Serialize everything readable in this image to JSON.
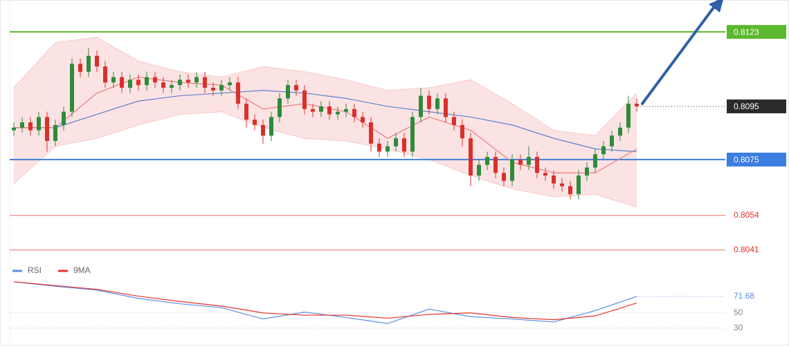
{
  "chart_data": [
    {
      "type": "candlestick",
      "ylim": [
        0.8036,
        0.8135
      ],
      "up_color": "#2e8b3a",
      "down_color": "#d9302c",
      "open": [
        0.8086,
        0.8087,
        0.8089,
        0.8086,
        0.8091,
        0.8082,
        0.8088,
        0.8093,
        0.8111,
        0.8108,
        0.8114,
        0.811,
        0.8104,
        0.8106,
        0.8102,
        0.8105,
        0.8103,
        0.8106,
        0.8104,
        0.8102,
        0.8103,
        0.8105,
        0.8104,
        0.8106,
        0.8102,
        0.8101,
        0.8103,
        0.8104,
        0.8096,
        0.809,
        0.8088,
        0.8084,
        0.8091,
        0.8098,
        0.8103,
        0.8101,
        0.8094,
        0.8093,
        0.8095,
        0.8092,
        0.8093,
        0.8094,
        0.8091,
        0.8089,
        0.8081,
        0.8078,
        0.808,
        0.8083,
        0.8078,
        0.8091,
        0.8099,
        0.8094,
        0.8098,
        0.8091,
        0.8088,
        0.8083,
        0.8069,
        0.8073,
        0.8076,
        0.807,
        0.8067,
        0.8075,
        0.8073,
        0.8076,
        0.807,
        0.8069,
        0.8066,
        0.8065,
        0.8062,
        0.8069,
        0.8072,
        0.8077,
        0.808,
        0.8084,
        0.8087,
        0.8096
      ],
      "high": [
        0.8089,
        0.8091,
        0.8091,
        0.8093,
        0.8093,
        0.809,
        0.8095,
        0.8113,
        0.8113,
        0.8117,
        0.8116,
        0.8112,
        0.8108,
        0.8108,
        0.8107,
        0.8107,
        0.8108,
        0.8108,
        0.8106,
        0.8105,
        0.8107,
        0.8107,
        0.8108,
        0.8108,
        0.8104,
        0.8105,
        0.8106,
        0.8106,
        0.8098,
        0.8092,
        0.809,
        0.8093,
        0.81,
        0.8105,
        0.8105,
        0.8103,
        0.8096,
        0.8097,
        0.8097,
        0.8095,
        0.8096,
        0.8096,
        0.8093,
        0.8091,
        0.8083,
        0.8082,
        0.8085,
        0.8085,
        0.8093,
        0.8102,
        0.8101,
        0.81,
        0.81,
        0.8093,
        0.809,
        0.8085,
        0.8075,
        0.8078,
        0.8078,
        0.8072,
        0.8077,
        0.8077,
        0.808,
        0.8078,
        0.8072,
        0.8071,
        0.8068,
        0.8067,
        0.8071,
        0.8074,
        0.8079,
        0.8082,
        0.8086,
        0.8089,
        0.8099,
        0.8098
      ],
      "low": [
        0.8084,
        0.8085,
        0.8084,
        0.8084,
        0.8078,
        0.808,
        0.8086,
        0.8091,
        0.8106,
        0.8106,
        0.8108,
        0.8102,
        0.8102,
        0.81,
        0.81,
        0.8101,
        0.8101,
        0.8102,
        0.81,
        0.81,
        0.8101,
        0.8102,
        0.8102,
        0.81,
        0.8099,
        0.8099,
        0.8101,
        0.8094,
        0.8087,
        0.8086,
        0.8081,
        0.8082,
        0.8089,
        0.8096,
        0.8099,
        0.8092,
        0.8091,
        0.8091,
        0.809,
        0.809,
        0.8091,
        0.8089,
        0.8087,
        0.8078,
        0.8076,
        0.8076,
        0.8078,
        0.8076,
        0.8076,
        0.8089,
        0.8092,
        0.8092,
        0.8089,
        0.8086,
        0.808,
        0.8065,
        0.8067,
        0.8071,
        0.8068,
        0.8065,
        0.8065,
        0.8071,
        0.8071,
        0.8068,
        0.8067,
        0.8064,
        0.8063,
        0.806,
        0.806,
        0.8067,
        0.807,
        0.8075,
        0.8078,
        0.8082,
        0.8085,
        0.8093
      ],
      "close": [
        0.8087,
        0.8089,
        0.8086,
        0.8091,
        0.8082,
        0.8088,
        0.8093,
        0.8111,
        0.8108,
        0.8114,
        0.811,
        0.8104,
        0.8106,
        0.8102,
        0.8105,
        0.8103,
        0.8106,
        0.8104,
        0.8102,
        0.8103,
        0.8105,
        0.8104,
        0.8106,
        0.8102,
        0.8101,
        0.8103,
        0.8104,
        0.8096,
        0.809,
        0.8088,
        0.8084,
        0.8091,
        0.8098,
        0.8103,
        0.8101,
        0.8094,
        0.8093,
        0.8095,
        0.8092,
        0.8093,
        0.8094,
        0.8091,
        0.8089,
        0.8081,
        0.8078,
        0.808,
        0.8083,
        0.8078,
        0.8091,
        0.8099,
        0.8094,
        0.8098,
        0.8091,
        0.8088,
        0.8083,
        0.8069,
        0.8073,
        0.8076,
        0.807,
        0.8067,
        0.8075,
        0.8073,
        0.8076,
        0.807,
        0.8069,
        0.8066,
        0.8065,
        0.8062,
        0.8069,
        0.8072,
        0.8077,
        0.808,
        0.8084,
        0.8087,
        0.8096,
        0.8095
      ],
      "overlay_x": [
        0,
        5,
        10,
        15,
        20,
        25,
        30,
        35,
        40,
        45,
        50,
        55,
        60,
        65,
        70,
        75
      ],
      "band": {
        "color": "#f8c8c8",
        "upper": [
          0.8102,
          0.8119,
          0.8121,
          0.8112,
          0.8108,
          0.8106,
          0.811,
          0.8108,
          0.8105,
          0.8101,
          0.8102,
          0.8105,
          0.8096,
          0.8086,
          0.8084,
          0.81
        ],
        "lower": [
          0.8066,
          0.808,
          0.8083,
          0.8088,
          0.8092,
          0.8093,
          0.8087,
          0.8083,
          0.8082,
          0.8079,
          0.8075,
          0.8069,
          0.8064,
          0.8061,
          0.8062,
          0.8057
        ]
      },
      "lines": [
        {
          "color": "#5b7fcf",
          "values": [
            0.8087,
            0.8087,
            0.8092,
            0.8097,
            0.8099,
            0.81,
            0.8101,
            0.81,
            0.8098,
            0.8095,
            0.8093,
            0.8091,
            0.8088,
            0.8083,
            0.8079,
            0.8078
          ]
        },
        {
          "color": "#ef7b7b",
          "values": [
            0.8087,
            0.8087,
            0.81,
            0.8106,
            0.8104,
            0.8103,
            0.8094,
            0.8096,
            0.8093,
            0.8083,
            0.8091,
            0.8086,
            0.8074,
            0.807,
            0.807,
            0.8079
          ]
        }
      ],
      "levels": [
        {
          "value": 0.8123,
          "color": "#5cb82e",
          "style": "box"
        },
        {
          "value": 0.8095,
          "color": "#2b2b2b",
          "style": "current"
        },
        {
          "value": 0.8075,
          "color": "#3b7de0",
          "style": "box"
        },
        {
          "value": 0.8054,
          "color": "#e8302a",
          "style": "text"
        },
        {
          "value": 0.8041,
          "color": "#e8302a",
          "style": "text"
        }
      ]
    },
    {
      "type": "line",
      "ylim": [
        7,
        98
      ],
      "yticks": [
        50,
        30
      ],
      "x": [
        0,
        5,
        10,
        15,
        20,
        25,
        30,
        35,
        40,
        45,
        50,
        55,
        60,
        65,
        70,
        75
      ],
      "series": [
        {
          "name": "RSI",
          "color": "#5b8de8",
          "values": [
            91,
            85,
            80,
            69,
            62,
            57,
            42,
            51,
            44,
            36,
            55,
            45,
            42,
            38,
            53,
            71.68
          ],
          "last_value": 71.68
        },
        {
          "name": "9MA",
          "color": "#e8302a",
          "values": [
            91,
            86,
            81,
            72,
            65,
            59,
            50,
            47,
            47,
            43,
            48,
            50,
            44,
            41,
            46,
            63
          ]
        }
      ]
    }
  ]
}
